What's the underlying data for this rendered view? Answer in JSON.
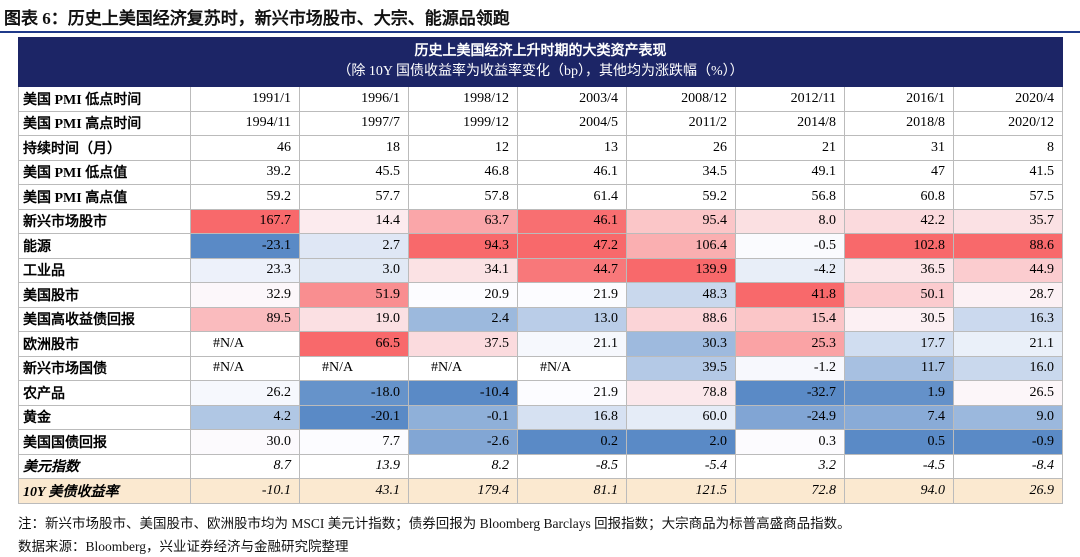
{
  "title": "图表 6：历史上美国经济复苏时，新兴市场股市、大宗、能源品领跑",
  "table": {
    "header": [
      "历史上美国经济上升时期的大类资产表现",
      "（除 10Y 国债收益率为收益率变化（bp），其他均为涨跌幅（%））"
    ],
    "rows": [
      {
        "label": "美国 PMI 低点时间",
        "cells": [
          "1991/1",
          "1996/1",
          "1998/12",
          "2003/4",
          "2008/12",
          "2012/11",
          "2016/1",
          "2020/4"
        ]
      },
      {
        "label": "美国 PMI 高点时间",
        "cells": [
          "1994/11",
          "1997/7",
          "1999/12",
          "2004/5",
          "2011/2",
          "2014/8",
          "2018/8",
          "2020/12"
        ]
      },
      {
        "label": "持续时间（月）",
        "cells": [
          "46",
          "18",
          "12",
          "13",
          "26",
          "21",
          "31",
          "8"
        ]
      },
      {
        "label": "美国 PMI 低点值",
        "cells": [
          "39.2",
          "45.5",
          "46.8",
          "46.1",
          "34.5",
          "49.1",
          "47",
          "41.5"
        ]
      },
      {
        "label": "美国 PMI 高点值",
        "cells": [
          "59.2",
          "57.7",
          "57.8",
          "61.4",
          "59.2",
          "56.8",
          "60.8",
          "57.5"
        ]
      },
      {
        "label": "新兴市场股市",
        "heat": true,
        "cells": [
          "167.7",
          "14.4",
          "63.7",
          "46.1",
          "95.4",
          "8.0",
          "42.2",
          "35.7"
        ]
      },
      {
        "label": "能源",
        "heat": true,
        "cells": [
          "-23.1",
          "2.7",
          "94.3",
          "47.2",
          "106.4",
          "-0.5",
          "102.8",
          "88.6"
        ]
      },
      {
        "label": "工业品",
        "heat": true,
        "cells": [
          "23.3",
          "3.0",
          "34.1",
          "44.7",
          "139.9",
          "-4.2",
          "36.5",
          "44.9"
        ]
      },
      {
        "label": "美国股市",
        "heat": true,
        "cells": [
          "32.9",
          "51.9",
          "20.9",
          "21.9",
          "48.3",
          "41.8",
          "50.1",
          "28.7"
        ]
      },
      {
        "label": "美国高收益债回报",
        "heat": true,
        "cells": [
          "89.5",
          "19.0",
          "2.4",
          "13.0",
          "88.6",
          "15.4",
          "30.5",
          "16.3"
        ]
      },
      {
        "label": "欧洲股市",
        "heat": true,
        "cells": [
          "#N/A",
          "66.5",
          "37.5",
          "21.1",
          "30.3",
          "25.3",
          "17.7",
          "21.1"
        ]
      },
      {
        "label": "新兴市场国债",
        "heat": true,
        "cells": [
          "#N/A",
          "#N/A",
          "#N/A",
          "#N/A",
          "39.5",
          "-1.2",
          "11.7",
          "16.0"
        ]
      },
      {
        "label": "农产品",
        "heat": true,
        "cells": [
          "26.2",
          "-18.0",
          "-10.4",
          "21.9",
          "78.8",
          "-32.7",
          "1.9",
          "26.5"
        ]
      },
      {
        "label": "黄金",
        "heat": true,
        "cells": [
          "4.2",
          "-20.1",
          "-0.1",
          "16.8",
          "60.0",
          "-24.9",
          "7.4",
          "9.0"
        ]
      },
      {
        "label": "美国国债回报",
        "heat": true,
        "cells": [
          "30.0",
          "7.7",
          "-2.6",
          "0.2",
          "2.0",
          "0.3",
          "0.5",
          "-0.9"
        ]
      },
      {
        "label": "美元指数",
        "italic": true,
        "cells": [
          "8.7",
          "13.9",
          "8.2",
          "-8.5",
          "-5.4",
          "3.2",
          "-4.5",
          "-8.4"
        ]
      },
      {
        "label": "10Y 美债收益率",
        "italic": true,
        "shaded": true,
        "cells": [
          "-10.1",
          "43.1",
          "179.4",
          "81.1",
          "121.5",
          "72.8",
          "94.0",
          "26.9"
        ]
      }
    ]
  },
  "notes": [
    "注：新兴市场股市、美国股市、欧洲股市均为 MSCI 美元计指数；债券回报为 Bloomberg Barclays 回报指数；大宗商品为标普高盛商品指数。",
    "数据来源：Bloomberg，兴业证券经济与金融研究院整理"
  ]
}
